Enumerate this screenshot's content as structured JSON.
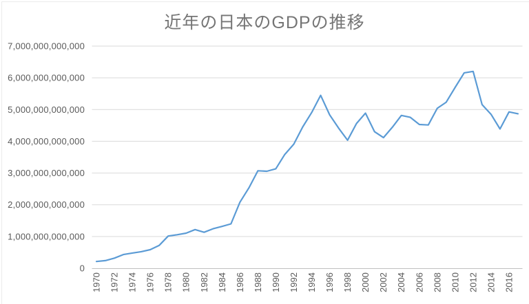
{
  "chart_data": {
    "type": "line",
    "title": "近年の日本のGDPの推移",
    "xlabel": "",
    "ylabel": "",
    "legend_position": "none",
    "grid": true,
    "ylim": [
      0,
      7000000000000
    ],
    "x": [
      1970,
      1971,
      1972,
      1973,
      1974,
      1975,
      1976,
      1977,
      1978,
      1979,
      1980,
      1981,
      1982,
      1983,
      1984,
      1985,
      1986,
      1987,
      1988,
      1989,
      1990,
      1991,
      1992,
      1993,
      1994,
      1995,
      1996,
      1997,
      1998,
      1999,
      2000,
      2001,
      2002,
      2003,
      2004,
      2005,
      2006,
      2007,
      2008,
      2009,
      2010,
      2011,
      2012,
      2013,
      2014,
      2015,
      2016,
      2017
    ],
    "series": [
      {
        "values": [
          212609000000,
          240152000000,
          318031000000,
          432083000000,
          479626000000,
          521542000000,
          586161000000,
          721117000000,
          1013611000000,
          1055012000000,
          1105386000000,
          1218989000000,
          1134518000000,
          1243324000000,
          1318381000000,
          1398893000000,
          2078953000000,
          2532810000000,
          3071683000000,
          3054914000000,
          3132818000000,
          3584421000000,
          3908809000000,
          4454144000000,
          4907039000000,
          5449116000000,
          4833712000000,
          4414732000000,
          4032510000000,
          4562079000000,
          4887520000000,
          4303544000000,
          4115116000000,
          4445658000000,
          4815149000000,
          4755410000000,
          4530377000000,
          4515265000000,
          5037908000000,
          5231383000000,
          5700098000000,
          6157460000000,
          6203213000000,
          5155717000000,
          4850414000000,
          4389476000000,
          4926667000000,
          4866864000000
        ]
      }
    ],
    "x_tick_labels": [
      "1970",
      "1972",
      "1974",
      "1976",
      "1978",
      "1980",
      "1982",
      "1984",
      "1986",
      "1988",
      "1990",
      "1992",
      "1994",
      "1996",
      "1998",
      "2000",
      "2002",
      "2004",
      "2006",
      "2008",
      "2010",
      "2012",
      "2014",
      "2016"
    ],
    "y_tick_values": [
      0,
      1000000000000,
      2000000000000,
      3000000000000,
      4000000000000,
      5000000000000,
      6000000000000,
      7000000000000
    ],
    "y_tick_labels": [
      "0",
      "1,000,000,000,000",
      "2,000,000,000,000",
      "3,000,000,000,000",
      "4,000,000,000,000",
      "5,000,000,000,000",
      "6,000,000,000,000",
      "7,000,000,000,000"
    ],
    "colors": {
      "line": "#5B9BD5",
      "title_text": "#757575",
      "tick_text": "#595959",
      "gridline": "#D9D9D9",
      "axis_line": "#BFBFBF",
      "background": "#FFFFFF"
    }
  }
}
